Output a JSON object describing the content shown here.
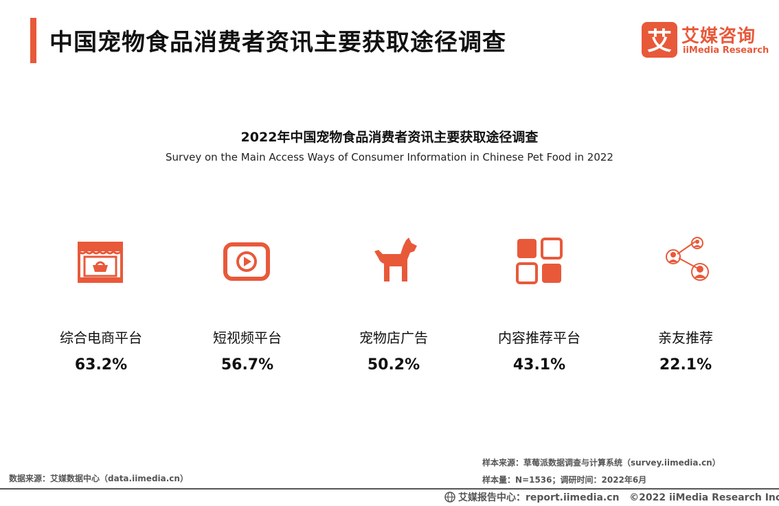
{
  "header": {
    "title": "中国宠物食品消费者资讯主要获取途径调查",
    "logo_cn": "艾媒咨询",
    "logo_en": "iiMedia Research",
    "logo_mark": "艾"
  },
  "colors": {
    "accent": "#e8593a",
    "text": "#111111",
    "muted": "#555555"
  },
  "chart_data": {
    "type": "table",
    "title": "2022年中国宠物食品消费者资讯主要获取途径调查",
    "subtitle": "Survey on the Main Access Ways of Consumer Information in Chinese Pet Food in 2022",
    "items": [
      {
        "icon": "shop-basket-icon",
        "label": "综合电商平台",
        "value": "63.2%"
      },
      {
        "icon": "video-play-icon",
        "label": "短视频平台",
        "value": "56.7%"
      },
      {
        "icon": "dog-icon",
        "label": "宠物店广告",
        "value": "50.2%"
      },
      {
        "icon": "grid-apps-icon",
        "label": "内容推荐平台",
        "value": "43.1%"
      },
      {
        "icon": "people-network-icon",
        "label": "亲友推荐",
        "value": "22.1%"
      }
    ]
  },
  "footer": {
    "data_source": "数据来源：艾媒数据中心（data.iimedia.cn）",
    "sample_source": "样本来源：草莓派数据调查与计算系统（survey.iimedia.cn）",
    "sample_size": "样本量：N=1536；调研时间：2022年6月",
    "report_center": "艾媒报告中心：report.iimedia.cn",
    "copyright": "©2022  iiMedia Research  Inc"
  }
}
